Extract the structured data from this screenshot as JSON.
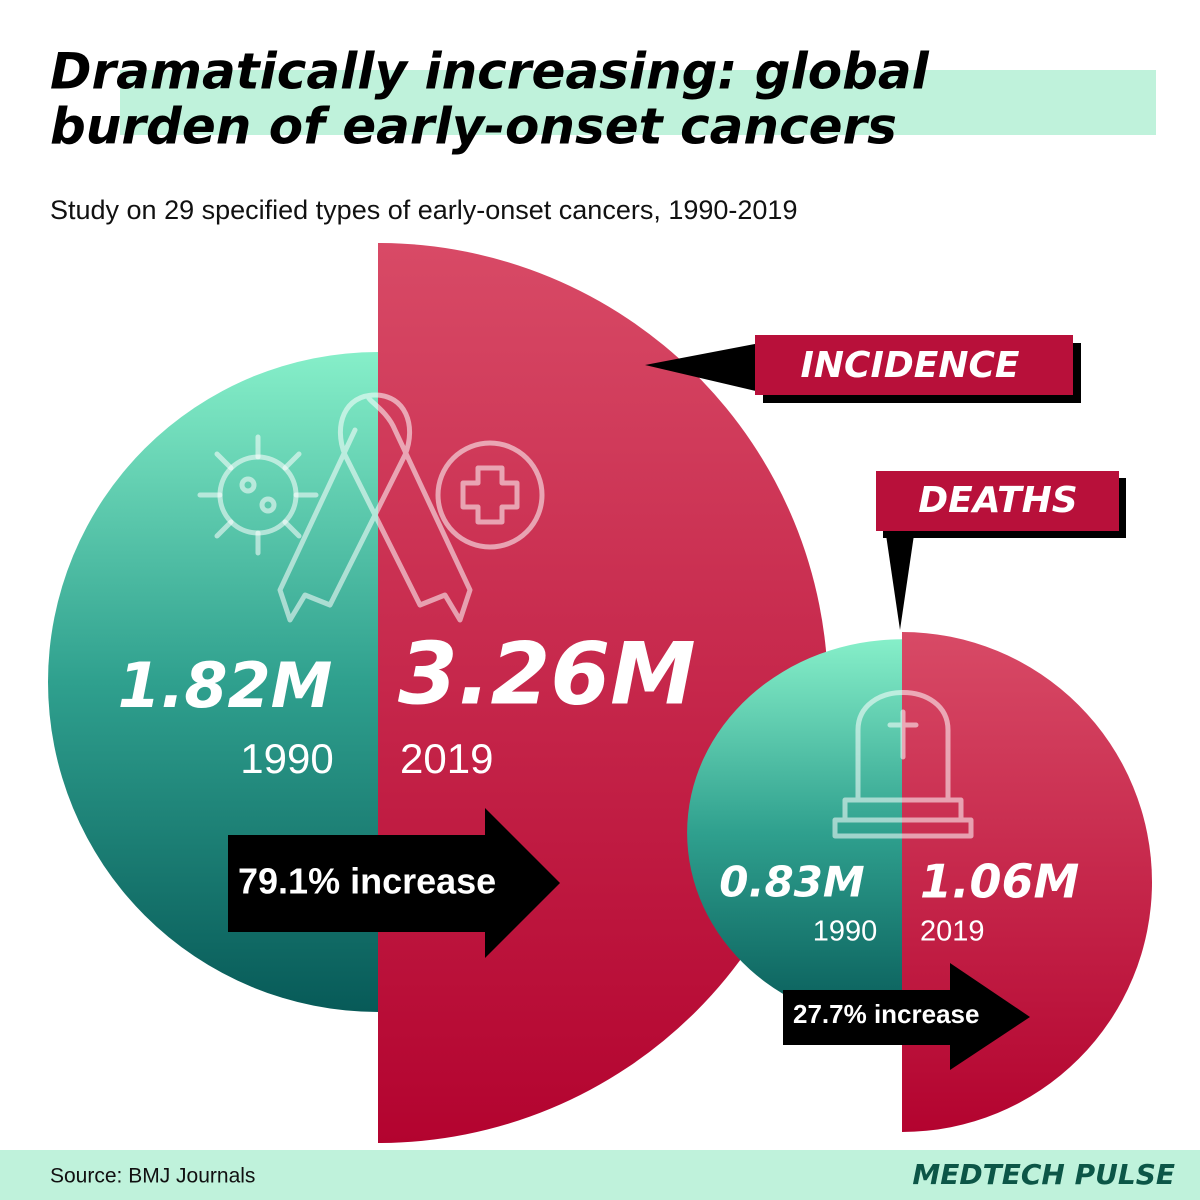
{
  "header": {
    "title": [
      "Dramatically increasing: global",
      "burden of early-onset cancers"
    ],
    "subtitle": "Study on 29 specified types of early-onset cancers, 1990-2019"
  },
  "incidence": {
    "label": "INCIDENCE",
    "value_1990": "1.82M",
    "year_1990": "1990",
    "value_2019": "3.26M",
    "year_2019": "2019",
    "change": "79.1% increase"
  },
  "deaths": {
    "label": "DEATHS",
    "value_1990": "0.83M",
    "year_1990": "1990",
    "value_2019": "1.06M",
    "year_2019": "2019",
    "change": "27.7% increase"
  },
  "footer": {
    "source": "Source: BMJ Journals",
    "brand": "MEDTECH PULSE"
  }
}
